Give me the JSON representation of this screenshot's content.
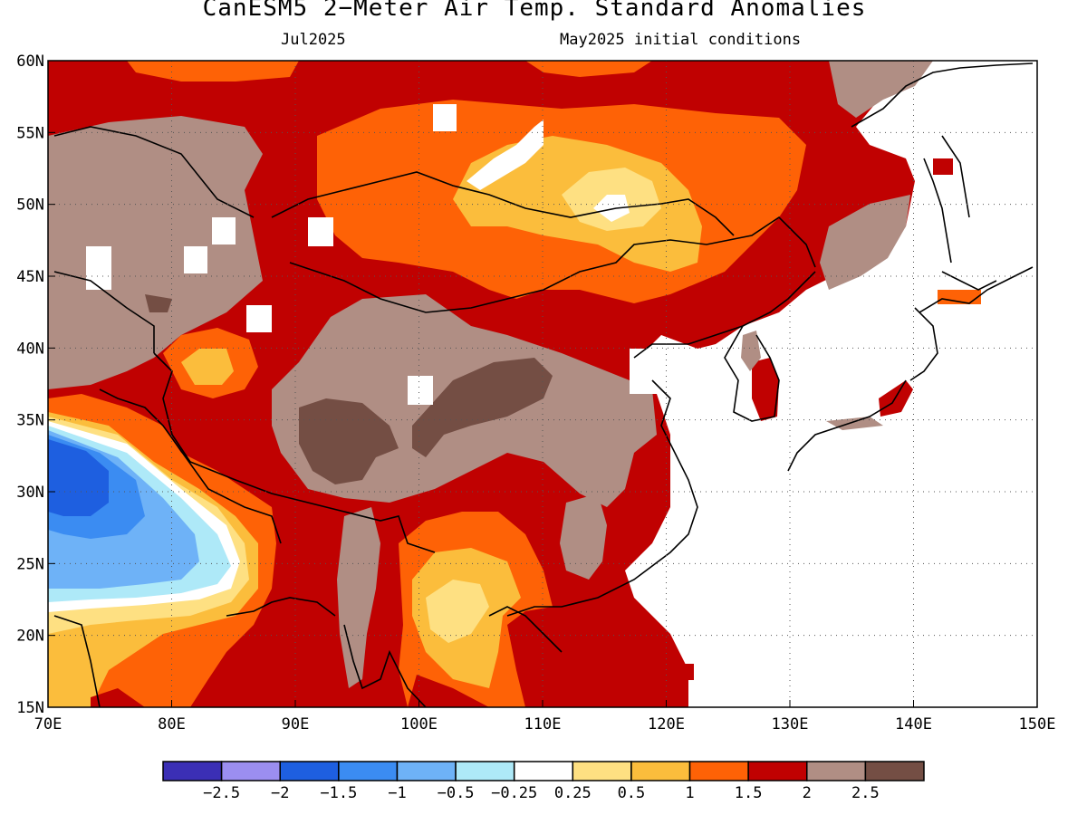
{
  "title": "CanESM5 2−Meter Air Temp. Standard Anomalies",
  "valid_month": "Jul2025",
  "init_conditions": "May2025 initial conditions",
  "axes": {
    "lon_ticks": [
      "70E",
      "80E",
      "90E",
      "100E",
      "110E",
      "120E",
      "130E",
      "140E",
      "150E"
    ],
    "lat_ticks": [
      "60N",
      "55N",
      "50N",
      "45N",
      "40N",
      "35N",
      "30N",
      "25N",
      "20N",
      "15N"
    ]
  },
  "colorbar": {
    "colors": [
      "#3b2fb5",
      "#9b8ef0",
      "#1e5fe0",
      "#3b8cf2",
      "#6eb2f7",
      "#aee9f8",
      "#ffffff",
      "#fee082",
      "#fbbd3c",
      "#fe6206",
      "#c00101",
      "#b08e84",
      "#744e44"
    ],
    "labels": [
      "−2.5",
      "−2",
      "−1.5",
      "−1",
      "−0.5",
      "−0.25",
      "0.25",
      "0.5",
      "1",
      "1.5",
      "2",
      "2.5"
    ]
  },
  "legend_categories": [
    {
      "name": "deep-red",
      "color": "#c00101"
    },
    {
      "name": "brown",
      "color": "#b08e84"
    },
    {
      "name": "dark-brown",
      "color": "#744e44"
    }
  ]
}
